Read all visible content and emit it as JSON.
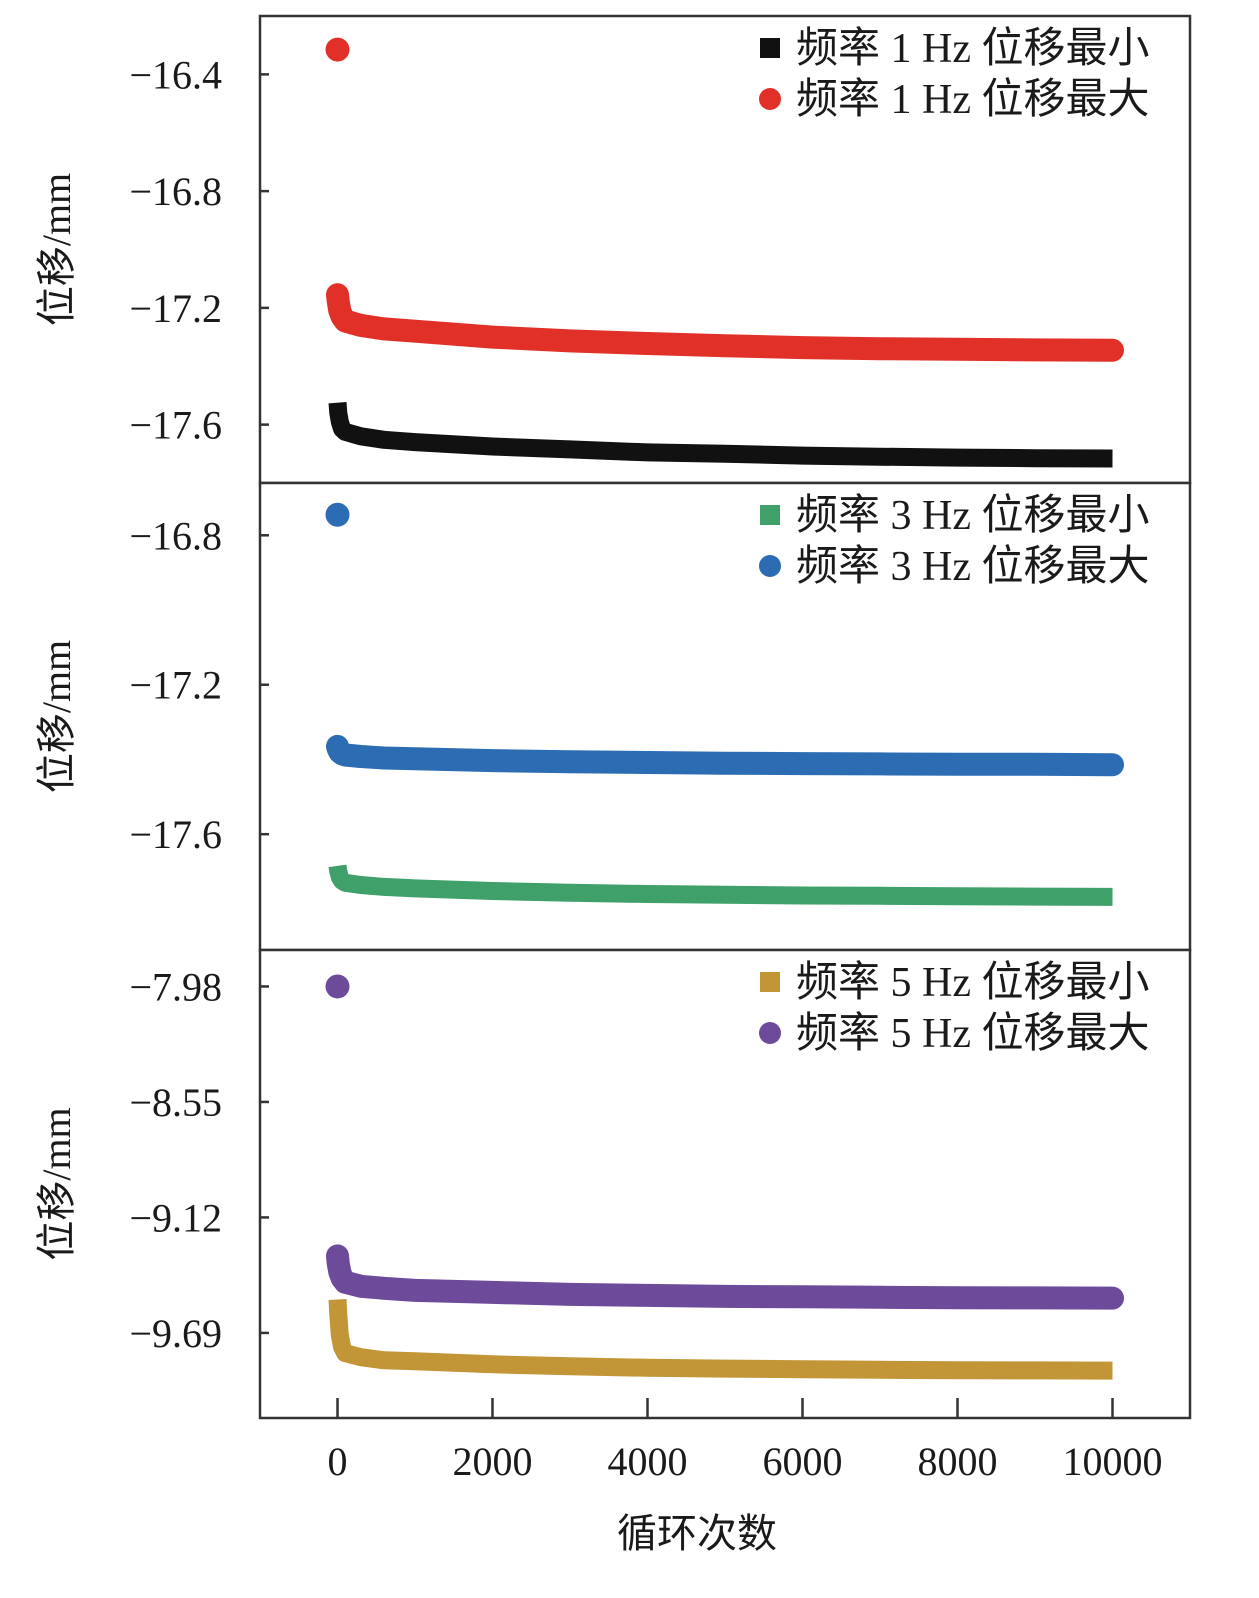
{
  "chart_data": [
    {
      "type": "scatter",
      "ylabel": "位移/mm",
      "ylim": [
        -17.8,
        -16.2
      ],
      "yticks": [
        -16.4,
        -16.8,
        -17.2,
        -17.6
      ],
      "ytick_labels": [
        "−16.4",
        "−16.8",
        "−17.2",
        "−17.6"
      ],
      "legend_position": "top-right",
      "series": [
        {
          "name": "频率 1 Hz 位移最小",
          "marker": "square",
          "color": "#111111",
          "outlier": null,
          "x": [
            0,
            10,
            30,
            60,
            100,
            300,
            600,
            1000,
            2000,
            3000,
            4000,
            5000,
            6000,
            7000,
            8000,
            9000,
            10000
          ],
          "y": [
            -17.525,
            -17.56,
            -17.59,
            -17.615,
            -17.625,
            -17.64,
            -17.652,
            -17.66,
            -17.675,
            -17.685,
            -17.695,
            -17.7,
            -17.706,
            -17.71,
            -17.713,
            -17.715,
            -17.716
          ]
        },
        {
          "name": "频率 1 Hz 位移最大",
          "marker": "circle",
          "color": "#e03028",
          "outlier": {
            "x": 0,
            "y": -16.315
          },
          "x": [
            0,
            10,
            30,
            60,
            100,
            300,
            600,
            1000,
            2000,
            3000,
            4000,
            5000,
            6000,
            7000,
            8000,
            9000,
            10000
          ],
          "y": [
            -17.155,
            -17.18,
            -17.21,
            -17.23,
            -17.245,
            -17.26,
            -17.272,
            -17.28,
            -17.3,
            -17.313,
            -17.322,
            -17.33,
            -17.336,
            -17.34,
            -17.342,
            -17.344,
            -17.345
          ]
        }
      ]
    },
    {
      "type": "scatter",
      "ylabel": "位移/mm",
      "ylim": [
        -17.91,
        -16.66
      ],
      "yticks": [
        -16.8,
        -17.2,
        -17.6
      ],
      "ytick_labels": [
        "−16.8",
        "−17.2",
        "−17.6"
      ],
      "legend_position": "top-right",
      "series": [
        {
          "name": "频率 3 Hz 位移最小",
          "marker": "square",
          "color": "#3fa06a",
          "outlier": null,
          "x": [
            0,
            10,
            30,
            60,
            100,
            300,
            600,
            1000,
            2000,
            3000,
            4000,
            5000,
            6000,
            7000,
            8000,
            9000,
            10000
          ],
          "y": [
            -17.685,
            -17.7,
            -17.715,
            -17.725,
            -17.73,
            -17.736,
            -17.741,
            -17.745,
            -17.752,
            -17.757,
            -17.76,
            -17.762,
            -17.764,
            -17.765,
            -17.766,
            -17.767,
            -17.768
          ]
        },
        {
          "name": "频率 3 Hz 位移最大",
          "marker": "circle",
          "color": "#2b6cb2",
          "outlier": {
            "x": 0,
            "y": -16.745
          },
          "x": [
            0,
            10,
            30,
            60,
            100,
            300,
            600,
            1000,
            2000,
            3000,
            4000,
            5000,
            6000,
            7000,
            8000,
            9000,
            10000
          ],
          "y": [
            -17.365,
            -17.372,
            -17.38,
            -17.385,
            -17.388,
            -17.392,
            -17.396,
            -17.398,
            -17.403,
            -17.406,
            -17.408,
            -17.41,
            -17.411,
            -17.412,
            -17.413,
            -17.413,
            -17.414
          ]
        }
      ]
    },
    {
      "type": "scatter",
      "xlabel": "循环次数",
      "ylabel": "位移/mm",
      "xlim": [
        -1000,
        11000
      ],
      "xticks": [
        0,
        2000,
        4000,
        6000,
        8000,
        10000
      ],
      "xtick_labels": [
        "0",
        "2000",
        "4000",
        "6000",
        "8000",
        "10000"
      ],
      "ylim": [
        -10.11,
        -7.8
      ],
      "yticks": [
        -7.98,
        -8.55,
        -9.12,
        -9.69
      ],
      "ytick_labels": [
        "−7.98",
        "−8.55",
        "−9.12",
        "−9.69"
      ],
      "legend_position": "top-right",
      "series": [
        {
          "name": "频率 5 Hz 位移最小",
          "marker": "square",
          "color": "#c29537",
          "outlier": null,
          "x": [
            0,
            10,
            30,
            60,
            100,
            300,
            600,
            1000,
            2000,
            3000,
            4000,
            5000,
            6000,
            7000,
            8000,
            9000,
            10000
          ],
          "y": [
            -9.525,
            -9.6,
            -9.7,
            -9.76,
            -9.79,
            -9.81,
            -9.825,
            -9.83,
            -9.845,
            -9.855,
            -9.862,
            -9.866,
            -9.869,
            -9.872,
            -9.874,
            -9.875,
            -9.876
          ]
        },
        {
          "name": "频率 5 Hz 位移最大",
          "marker": "circle",
          "color": "#6e4a9a",
          "outlier": {
            "x": 0,
            "y": -7.98
          },
          "x": [
            0,
            10,
            30,
            60,
            100,
            300,
            600,
            1000,
            2000,
            3000,
            4000,
            5000,
            6000,
            7000,
            8000,
            9000,
            10000
          ],
          "y": [
            -9.31,
            -9.35,
            -9.39,
            -9.42,
            -9.44,
            -9.46,
            -9.47,
            -9.48,
            -9.49,
            -9.5,
            -9.505,
            -9.51,
            -9.512,
            -9.514,
            -9.516,
            -9.517,
            -9.518
          ]
        }
      ]
    }
  ]
}
